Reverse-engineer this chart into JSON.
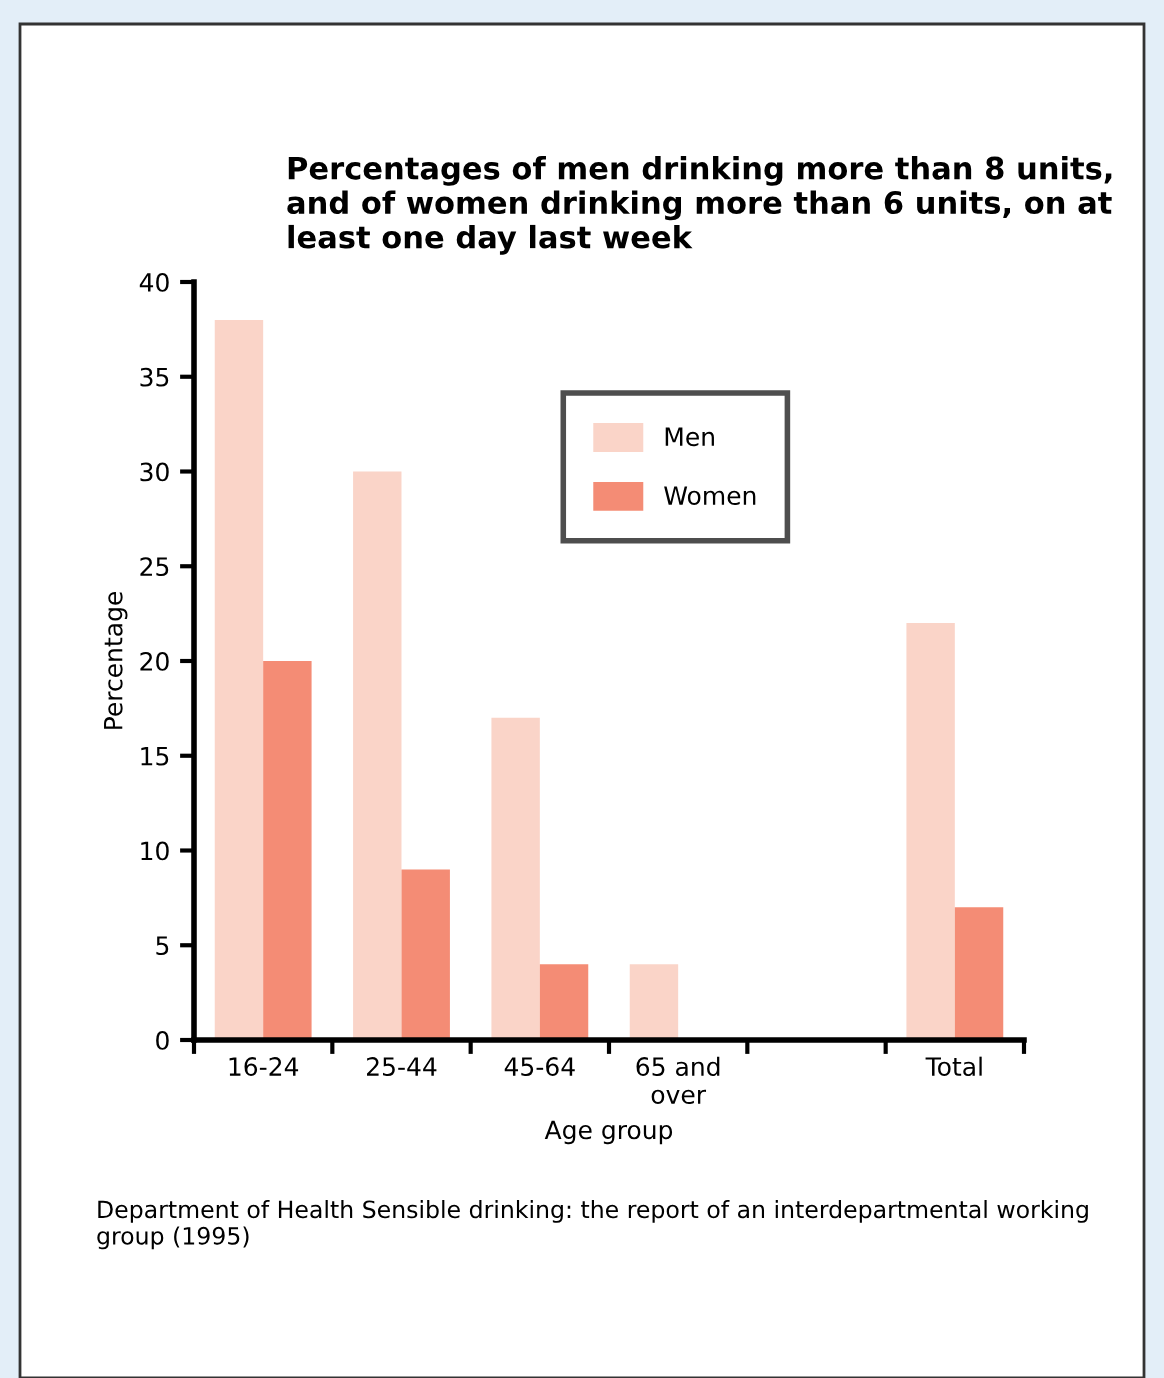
{
  "chart_data": {
    "type": "bar",
    "title": "Percentages of men drinking more than 8 units, and of women drinking more than 6 units, on at least one day last week",
    "xlabel": "Age group",
    "ylabel": "Percentage",
    "categories": [
      "16-24",
      "25-44",
      "45-64",
      "65 and\nover",
      null,
      "Total"
    ],
    "series": [
      {
        "name": "Men",
        "color": "#fad4c8",
        "values": [
          38,
          30,
          17,
          4,
          null,
          22
        ]
      },
      {
        "name": "Women",
        "color": "#f48c75",
        "values": [
          20,
          9,
          4,
          null,
          null,
          7
        ]
      }
    ],
    "ylim": [
      0,
      40
    ],
    "yticks": [
      0,
      5,
      10,
      15,
      20,
      25,
      30,
      35,
      40
    ],
    "grid": false,
    "legend": "top right",
    "annotations": [
      "Department of Health Sensible drinking: the report of an interdepartmental working group (1995)"
    ]
  }
}
